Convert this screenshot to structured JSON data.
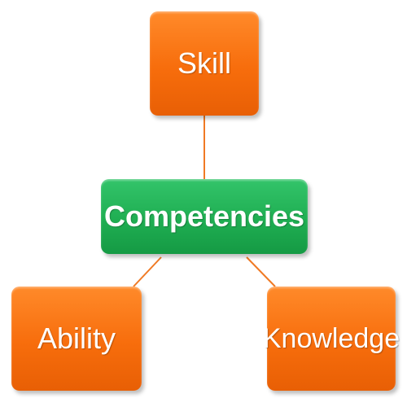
{
  "diagram": {
    "nodes": [
      {
        "id": "skill",
        "label": "Skill"
      },
      {
        "id": "competencies",
        "label": "Competencies"
      },
      {
        "id": "ability",
        "label": "Ability"
      },
      {
        "id": "knowledge",
        "label": "Knowledge"
      }
    ],
    "edges": [
      {
        "from": "competencies",
        "to": "skill"
      },
      {
        "from": "competencies",
        "to": "ability"
      },
      {
        "from": "competencies",
        "to": "knowledge"
      }
    ]
  },
  "colors": {
    "node_orange": "#f76d0c",
    "node_green": "#1fae52",
    "connector": "#f07a24"
  }
}
